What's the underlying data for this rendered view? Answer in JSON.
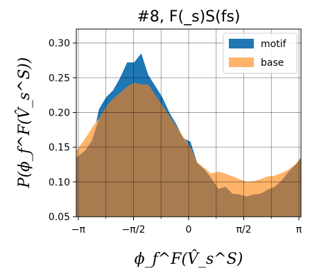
{
  "chart_data": {
    "type": "area",
    "title": "#8, F(_s)S(fs)",
    "xlabel": "ϕ_f^F(V̂_s^S)",
    "ylabel": "P(ϕ_f^F(V̂_s^S))",
    "xlim": [
      -3.2,
      3.2
    ],
    "ylim": [
      0.05,
      0.32
    ],
    "grid": true,
    "legend_position": "top-right",
    "x_ticks": [
      {
        "value": -3.14159,
        "label": "−π"
      },
      {
        "value": -1.5708,
        "label": "−π/2"
      },
      {
        "value": 0,
        "label": "0"
      },
      {
        "value": 1.5708,
        "label": "π/2"
      },
      {
        "value": 3.14159,
        "label": "π"
      }
    ],
    "x_minor_grid": [
      -2.35619,
      -0.785398,
      0.785398,
      2.35619
    ],
    "y_ticks": [
      0.05,
      0.1,
      0.15,
      0.2,
      0.25,
      0.3
    ],
    "x": [
      -3.2,
      -2.95,
      -2.75,
      -2.55,
      -2.35,
      -2.15,
      -1.95,
      -1.75,
      -1.55,
      -1.35,
      -1.15,
      -0.95,
      -0.75,
      -0.55,
      -0.35,
      -0.15,
      0.05,
      0.25,
      0.45,
      0.65,
      0.85,
      1.05,
      1.25,
      1.45,
      1.65,
      1.85,
      2.05,
      2.25,
      2.45,
      2.65,
      2.85,
      3.05,
      3.2
    ],
    "series": [
      {
        "name": "motif",
        "color": "#1f77b4",
        "values": [
          0.135,
          0.145,
          0.16,
          0.205,
          0.222,
          0.232,
          0.25,
          0.272,
          0.272,
          0.285,
          0.254,
          0.238,
          0.222,
          0.2,
          0.183,
          0.163,
          0.158,
          0.127,
          0.118,
          0.105,
          0.09,
          0.093,
          0.083,
          0.082,
          0.079,
          0.082,
          0.083,
          0.089,
          0.093,
          0.102,
          0.115,
          0.125,
          0.135
        ]
      },
      {
        "name": "base",
        "color": "#ffb36a",
        "values": [
          0.145,
          0.162,
          0.178,
          0.192,
          0.208,
          0.22,
          0.228,
          0.237,
          0.243,
          0.24,
          0.24,
          0.225,
          0.21,
          0.195,
          0.18,
          0.165,
          0.15,
          0.128,
          0.12,
          0.112,
          0.115,
          0.112,
          0.108,
          0.104,
          0.1,
          0.101,
          0.104,
          0.108,
          0.109,
          0.113,
          0.118,
          0.126,
          0.135
        ]
      }
    ],
    "overlap_color": "#a97c50"
  }
}
